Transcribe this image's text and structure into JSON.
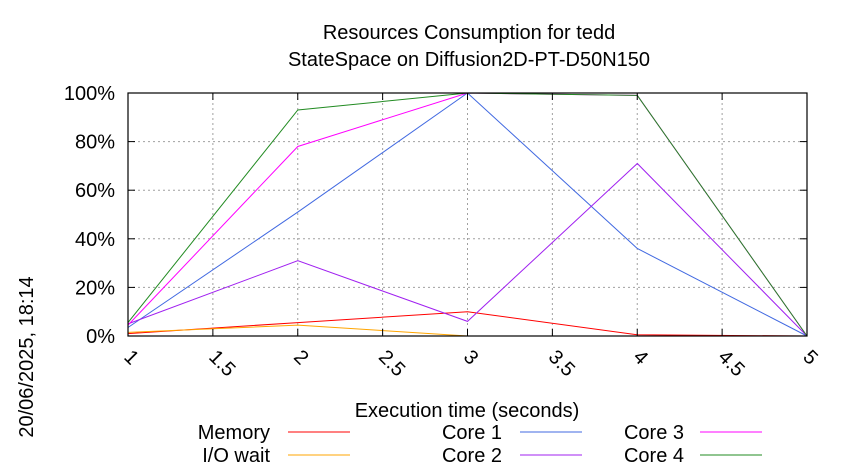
{
  "timestamp": "20/06/2025, 18:14",
  "chart_data": {
    "type": "line",
    "title": "Resources Consumption for tedd",
    "subtitle": "StateSpace on Diffusion2D-PT-D50N150",
    "xlabel": "Execution time (seconds)",
    "ylabel": "",
    "xlim": [
      1,
      5
    ],
    "ylim": [
      0,
      100
    ],
    "x_ticks": [
      "1",
      "1.5",
      "2",
      "2.5",
      "3",
      "3.5",
      "4",
      "4.5",
      "5"
    ],
    "y_ticks": [
      "0%",
      "20%",
      "40%",
      "60%",
      "80%",
      "100%"
    ],
    "grid": true,
    "legend_position": "bottom",
    "x": [
      1,
      2,
      3,
      4,
      5
    ],
    "series": [
      {
        "name": "Memory",
        "color": "#ff0000",
        "values": [
          1,
          5.5,
          10,
          0.5,
          0
        ]
      },
      {
        "name": "I/O wait",
        "color": "#ffa500",
        "values": [
          1.5,
          4.5,
          0,
          0,
          0
        ]
      },
      {
        "name": "Core 1",
        "color": "#4169e1",
        "values": [
          3.5,
          51,
          100,
          36,
          0
        ]
      },
      {
        "name": "Core 2",
        "color": "#a020f0",
        "values": [
          5,
          31,
          6,
          71,
          0
        ]
      },
      {
        "name": "Core 3",
        "color": "#ff00ff",
        "values": [
          4.5,
          78,
          100,
          99,
          0
        ]
      },
      {
        "name": "Core 4",
        "color": "#228b22",
        "values": [
          5.5,
          93,
          100,
          99,
          0
        ]
      }
    ]
  }
}
